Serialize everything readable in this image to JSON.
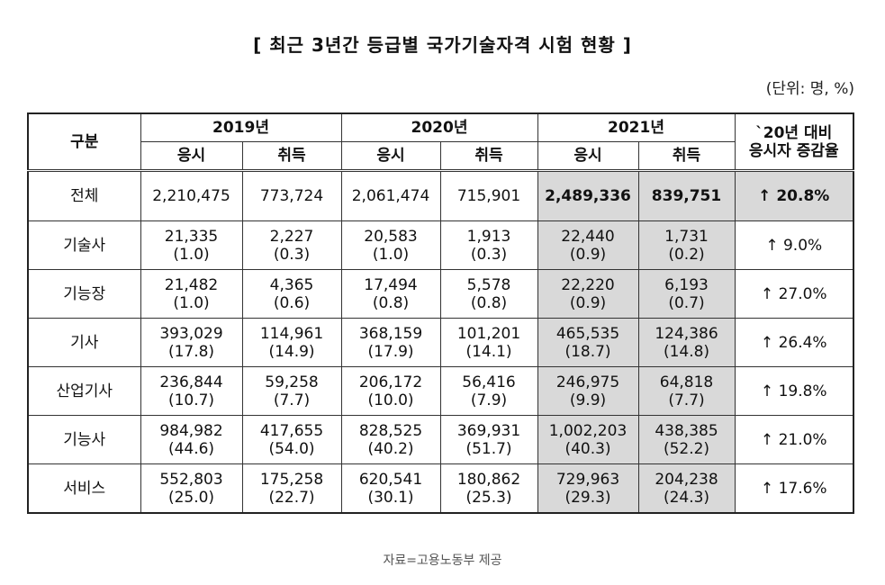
{
  "title": "[ 최근 3년간 등급별 국가기술자격 시험 현황 ]",
  "unit": "(단위: 명, %)",
  "table": {
    "header": {
      "group": "구분",
      "years": [
        "2019년",
        "2020년",
        "2021년"
      ],
      "sub": [
        "응시",
        "취득",
        "응시",
        "취득",
        "응시",
        "취득"
      ],
      "change": [
        "`20년 대비",
        "응시자 증감율"
      ]
    },
    "rows": [
      {
        "label": "전체",
        "cells": [
          [
            "2,210,475"
          ],
          [
            "773,724"
          ],
          [
            "2,061,474"
          ],
          [
            "715,901"
          ],
          [
            "2,489,336"
          ],
          [
            "839,751"
          ]
        ],
        "change": "↑ 20.8%"
      },
      {
        "label": "기술사",
        "cells": [
          [
            "21,335",
            "(1.0)"
          ],
          [
            "2,227",
            "(0.3)"
          ],
          [
            "20,583",
            "(1.0)"
          ],
          [
            "1,913",
            "(0.3)"
          ],
          [
            "22,440",
            "(0.9)"
          ],
          [
            "1,731",
            "(0.2)"
          ]
        ],
        "change": "↑ 9.0%"
      },
      {
        "label": "기능장",
        "cells": [
          [
            "21,482",
            "(1.0)"
          ],
          [
            "4,365",
            "(0.6)"
          ],
          [
            "17,494",
            "(0.8)"
          ],
          [
            "5,578",
            "(0.8)"
          ],
          [
            "22,220",
            "(0.9)"
          ],
          [
            "6,193",
            "(0.7)"
          ]
        ],
        "change": "↑ 27.0%"
      },
      {
        "label": "기사",
        "cells": [
          [
            "393,029",
            "(17.8)"
          ],
          [
            "114,961",
            "(14.9)"
          ],
          [
            "368,159",
            "(17.9)"
          ],
          [
            "101,201",
            "(14.1)"
          ],
          [
            "465,535",
            "(18.7)"
          ],
          [
            "124,386",
            "(14.8)"
          ]
        ],
        "change": "↑ 26.4%"
      },
      {
        "label": "산업기사",
        "cells": [
          [
            "236,844",
            "(10.7)"
          ],
          [
            "59,258",
            "(7.7)"
          ],
          [
            "206,172",
            "(10.0)"
          ],
          [
            "56,416",
            "(7.9)"
          ],
          [
            "246,975",
            "(9.9)"
          ],
          [
            "64,818",
            "(7.7)"
          ]
        ],
        "change": "↑ 19.8%"
      },
      {
        "label": "기능사",
        "cells": [
          [
            "984,982",
            "(44.6)"
          ],
          [
            "417,655",
            "(54.0)"
          ],
          [
            "828,525",
            "(40.2)"
          ],
          [
            "369,931",
            "(51.7)"
          ],
          [
            "1,002,203",
            "(40.3)"
          ],
          [
            "438,385",
            "(52.2)"
          ]
        ],
        "change": "↑ 21.0%"
      },
      {
        "label": "서비스",
        "cells": [
          [
            "552,803",
            "(25.0)"
          ],
          [
            "175,258",
            "(22.7)"
          ],
          [
            "620,541",
            "(30.1)"
          ],
          [
            "180,862",
            "(25.3)"
          ],
          [
            "729,963",
            "(29.3)"
          ],
          [
            "204,238",
            "(24.3)"
          ]
        ],
        "change": "↑ 17.6%"
      }
    ]
  },
  "source": "자료=고용노동부 제공"
}
